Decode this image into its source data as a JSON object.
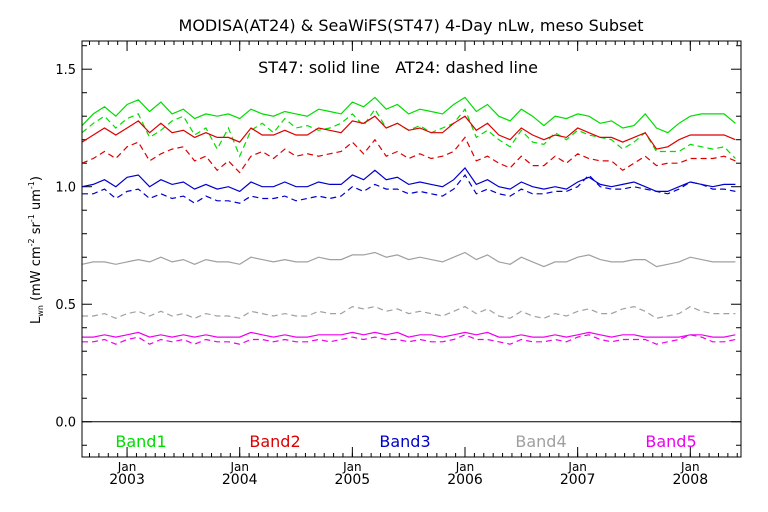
{
  "chart_data": {
    "type": "line",
    "title": "MODISA(AT24) & SeaWiFS(ST47) 4-Day nLw, meso Subset",
    "annotation": "ST47: solid line   AT24: dashed line",
    "ylabel": "L_wn (mW cm^-2 sr^-1 um^-1)",
    "ylabel_parts": {
      "L": "L",
      "wn": "wn",
      "units_open": " (mW cm",
      "exp1": "-2",
      "sr": " sr",
      "exp2": "-1",
      "um": " um",
      "exp3": "-1",
      "close": ")"
    },
    "ylim": [
      -0.15,
      1.62
    ],
    "xlim": [
      2002.6,
      2008.45
    ],
    "yticks": [
      {
        "v": 0.0,
        "label": "0.0"
      },
      {
        "v": 0.5,
        "label": "0.5"
      },
      {
        "v": 1.0,
        "label": "1.0"
      },
      {
        "v": 1.5,
        "label": "1.5"
      }
    ],
    "xticks": [
      {
        "v": 2003.0,
        "month": "Jan",
        "year": "2003"
      },
      {
        "v": 2004.0,
        "month": "Jan",
        "year": "2004"
      },
      {
        "v": 2005.0,
        "month": "Jan",
        "year": "2005"
      },
      {
        "v": 2006.0,
        "month": "Jan",
        "year": "2006"
      },
      {
        "v": 2007.0,
        "month": "Jan",
        "year": "2007"
      },
      {
        "v": 2008.0,
        "month": "Jan",
        "year": "2008"
      }
    ],
    "zero_line": 0.0,
    "x": [
      2002.6,
      2002.7,
      2002.8,
      2002.9,
      2003.0,
      2003.1,
      2003.2,
      2003.3,
      2003.4,
      2003.5,
      2003.6,
      2003.7,
      2003.8,
      2003.9,
      2004.0,
      2004.1,
      2004.2,
      2004.3,
      2004.4,
      2004.5,
      2004.6,
      2004.7,
      2004.8,
      2004.9,
      2005.0,
      2005.1,
      2005.2,
      2005.3,
      2005.4,
      2005.5,
      2005.6,
      2005.7,
      2005.8,
      2005.9,
      2006.0,
      2006.1,
      2006.2,
      2006.3,
      2006.4,
      2006.5,
      2006.6,
      2006.7,
      2006.8,
      2006.9,
      2007.0,
      2007.1,
      2007.2,
      2007.3,
      2007.4,
      2007.5,
      2007.6,
      2007.7,
      2007.8,
      2007.9,
      2008.0,
      2008.1,
      2008.2,
      2008.3,
      2008.4
    ],
    "series": [
      {
        "name": "Band1",
        "color": "#00dd00",
        "style": "solid",
        "values": [
          1.26,
          1.31,
          1.34,
          1.3,
          1.35,
          1.37,
          1.32,
          1.36,
          1.31,
          1.33,
          1.29,
          1.31,
          1.3,
          1.31,
          1.29,
          1.33,
          1.31,
          1.3,
          1.32,
          1.31,
          1.3,
          1.33,
          1.32,
          1.31,
          1.36,
          1.34,
          1.38,
          1.33,
          1.35,
          1.31,
          1.33,
          1.32,
          1.31,
          1.35,
          1.38,
          1.32,
          1.35,
          1.3,
          1.28,
          1.33,
          1.3,
          1.26,
          1.3,
          1.29,
          1.31,
          1.3,
          1.27,
          1.28,
          1.25,
          1.26,
          1.31,
          1.25,
          1.23,
          1.27,
          1.3,
          1.31,
          1.31,
          1.31,
          1.27
        ]
      },
      {
        "name": "Band1",
        "color": "#00dd00",
        "style": "dashed",
        "values": [
          1.23,
          1.27,
          1.3,
          1.25,
          1.29,
          1.31,
          1.21,
          1.24,
          1.28,
          1.3,
          1.22,
          1.25,
          1.16,
          1.25,
          1.13,
          1.24,
          1.27,
          1.23,
          1.29,
          1.25,
          1.26,
          1.24,
          1.25,
          1.27,
          1.31,
          1.26,
          1.33,
          1.25,
          1.27,
          1.24,
          1.26,
          1.23,
          1.25,
          1.27,
          1.33,
          1.21,
          1.24,
          1.2,
          1.17,
          1.24,
          1.19,
          1.18,
          1.23,
          1.2,
          1.24,
          1.22,
          1.21,
          1.2,
          1.16,
          1.19,
          1.23,
          1.15,
          1.15,
          1.15,
          1.18,
          1.17,
          1.16,
          1.17,
          1.12
        ]
      },
      {
        "name": "Band2",
        "color": "#dd0000",
        "style": "solid",
        "values": [
          1.19,
          1.22,
          1.25,
          1.22,
          1.25,
          1.28,
          1.23,
          1.27,
          1.23,
          1.24,
          1.21,
          1.23,
          1.21,
          1.21,
          1.19,
          1.25,
          1.22,
          1.22,
          1.24,
          1.22,
          1.22,
          1.25,
          1.24,
          1.23,
          1.28,
          1.27,
          1.3,
          1.25,
          1.27,
          1.24,
          1.25,
          1.23,
          1.23,
          1.27,
          1.3,
          1.24,
          1.27,
          1.22,
          1.2,
          1.25,
          1.22,
          1.2,
          1.22,
          1.21,
          1.25,
          1.23,
          1.21,
          1.21,
          1.19,
          1.21,
          1.23,
          1.16,
          1.17,
          1.2,
          1.22,
          1.22,
          1.22,
          1.22,
          1.2
        ]
      },
      {
        "name": "Band2",
        "color": "#dd0000",
        "style": "dashed",
        "values": [
          1.1,
          1.12,
          1.15,
          1.12,
          1.17,
          1.19,
          1.11,
          1.14,
          1.16,
          1.17,
          1.11,
          1.13,
          1.07,
          1.11,
          1.06,
          1.13,
          1.15,
          1.12,
          1.16,
          1.13,
          1.14,
          1.13,
          1.14,
          1.15,
          1.19,
          1.14,
          1.2,
          1.13,
          1.15,
          1.12,
          1.14,
          1.12,
          1.13,
          1.15,
          1.21,
          1.11,
          1.13,
          1.1,
          1.08,
          1.13,
          1.09,
          1.09,
          1.13,
          1.1,
          1.14,
          1.12,
          1.11,
          1.11,
          1.07,
          1.1,
          1.13,
          1.09,
          1.1,
          1.1,
          1.12,
          1.12,
          1.12,
          1.13,
          1.11
        ]
      },
      {
        "name": "Band3",
        "color": "#0000cc",
        "style": "solid",
        "values": [
          1.0,
          1.01,
          1.03,
          1.0,
          1.04,
          1.05,
          1.0,
          1.03,
          1.01,
          1.02,
          0.99,
          1.01,
          0.99,
          1.0,
          0.98,
          1.02,
          1.0,
          1.0,
          1.02,
          1.0,
          1.0,
          1.02,
          1.01,
          1.01,
          1.05,
          1.03,
          1.07,
          1.03,
          1.04,
          1.01,
          1.02,
          1.01,
          1.0,
          1.03,
          1.08,
          1.01,
          1.03,
          1.0,
          0.99,
          1.02,
          1.0,
          0.99,
          1.0,
          0.99,
          1.02,
          1.04,
          1.01,
          1.0,
          1.01,
          1.02,
          1.0,
          0.98,
          0.98,
          1.0,
          1.02,
          1.01,
          1.0,
          1.01,
          1.01
        ]
      },
      {
        "name": "Band3",
        "color": "#0000cc",
        "style": "dashed",
        "values": [
          0.97,
          0.97,
          0.99,
          0.95,
          0.98,
          0.99,
          0.95,
          0.97,
          0.95,
          0.96,
          0.93,
          0.96,
          0.94,
          0.94,
          0.93,
          0.96,
          0.95,
          0.95,
          0.96,
          0.94,
          0.95,
          0.96,
          0.95,
          0.96,
          1.0,
          0.98,
          1.01,
          0.99,
          0.99,
          0.97,
          0.98,
          0.97,
          0.96,
          0.99,
          1.05,
          0.97,
          0.99,
          0.97,
          0.96,
          0.99,
          0.97,
          0.97,
          0.98,
          0.98,
          1.0,
          1.05,
          1.0,
          0.99,
          0.99,
          1.0,
          0.99,
          0.98,
          0.97,
          0.99,
          1.02,
          1.01,
          0.99,
          0.99,
          0.98
        ]
      },
      {
        "name": "Band4",
        "color": "#a0a0a0",
        "style": "solid",
        "values": [
          0.67,
          0.68,
          0.68,
          0.67,
          0.68,
          0.69,
          0.68,
          0.7,
          0.68,
          0.69,
          0.67,
          0.69,
          0.68,
          0.68,
          0.67,
          0.7,
          0.69,
          0.68,
          0.69,
          0.68,
          0.68,
          0.7,
          0.69,
          0.69,
          0.71,
          0.71,
          0.72,
          0.7,
          0.71,
          0.69,
          0.7,
          0.69,
          0.68,
          0.7,
          0.72,
          0.69,
          0.71,
          0.68,
          0.67,
          0.7,
          0.68,
          0.66,
          0.68,
          0.68,
          0.7,
          0.71,
          0.69,
          0.68,
          0.68,
          0.69,
          0.69,
          0.66,
          0.67,
          0.68,
          0.7,
          0.69,
          0.68,
          0.68,
          0.68
        ]
      },
      {
        "name": "Band4",
        "color": "#a0a0a0",
        "style": "dashed",
        "values": [
          0.45,
          0.45,
          0.46,
          0.44,
          0.46,
          0.47,
          0.45,
          0.47,
          0.45,
          0.46,
          0.44,
          0.46,
          0.45,
          0.45,
          0.44,
          0.47,
          0.46,
          0.45,
          0.46,
          0.45,
          0.45,
          0.47,
          0.46,
          0.46,
          0.49,
          0.48,
          0.49,
          0.47,
          0.48,
          0.46,
          0.47,
          0.46,
          0.45,
          0.47,
          0.49,
          0.46,
          0.48,
          0.45,
          0.44,
          0.47,
          0.45,
          0.44,
          0.46,
          0.45,
          0.47,
          0.48,
          0.46,
          0.46,
          0.48,
          0.49,
          0.47,
          0.44,
          0.45,
          0.46,
          0.49,
          0.47,
          0.46,
          0.46,
          0.46
        ]
      },
      {
        "name": "Band5",
        "color": "#ee00ee",
        "style": "solid",
        "values": [
          0.36,
          0.36,
          0.37,
          0.36,
          0.37,
          0.38,
          0.36,
          0.37,
          0.36,
          0.37,
          0.36,
          0.37,
          0.36,
          0.36,
          0.36,
          0.38,
          0.37,
          0.36,
          0.37,
          0.36,
          0.36,
          0.37,
          0.37,
          0.37,
          0.38,
          0.37,
          0.38,
          0.37,
          0.38,
          0.36,
          0.37,
          0.37,
          0.36,
          0.37,
          0.38,
          0.37,
          0.38,
          0.36,
          0.36,
          0.37,
          0.36,
          0.36,
          0.37,
          0.36,
          0.37,
          0.38,
          0.37,
          0.36,
          0.37,
          0.37,
          0.36,
          0.36,
          0.36,
          0.36,
          0.37,
          0.37,
          0.36,
          0.36,
          0.37
        ]
      },
      {
        "name": "Band5",
        "color": "#ee00ee",
        "style": "dashed",
        "values": [
          0.34,
          0.34,
          0.35,
          0.33,
          0.35,
          0.36,
          0.33,
          0.35,
          0.34,
          0.35,
          0.33,
          0.35,
          0.34,
          0.34,
          0.33,
          0.35,
          0.35,
          0.34,
          0.35,
          0.34,
          0.34,
          0.35,
          0.34,
          0.35,
          0.36,
          0.35,
          0.36,
          0.35,
          0.35,
          0.34,
          0.35,
          0.34,
          0.34,
          0.35,
          0.37,
          0.35,
          0.35,
          0.34,
          0.33,
          0.35,
          0.34,
          0.34,
          0.35,
          0.34,
          0.36,
          0.37,
          0.35,
          0.34,
          0.35,
          0.35,
          0.35,
          0.33,
          0.34,
          0.35,
          0.37,
          0.36,
          0.34,
          0.34,
          0.35
        ]
      }
    ],
    "legend": [
      {
        "label": "Band1",
        "color": "#00dd00"
      },
      {
        "label": "Band2",
        "color": "#dd0000"
      },
      {
        "label": "Band3",
        "color": "#0000cc"
      },
      {
        "label": "Band4",
        "color": "#a0a0a0"
      },
      {
        "label": "Band5",
        "color": "#ee00ee"
      }
    ],
    "legend_placement": "bottom inside plot",
    "grid": false
  }
}
